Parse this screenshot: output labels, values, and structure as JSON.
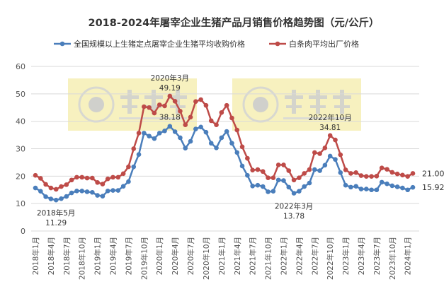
{
  "chart_data": {
    "type": "line",
    "title": "2018-2024年屠宰企业生猪产品月销售价格趋势图（元/公斤）",
    "xlabel": "",
    "ylabel": "",
    "ylim": [
      0,
      60
    ],
    "yticks": [
      0,
      10,
      20,
      30,
      40,
      50,
      60
    ],
    "grid": true,
    "legend_position": "top",
    "x": [
      "2018-01",
      "2018-02",
      "2018-03",
      "2018-04",
      "2018-05",
      "2018-06",
      "2018-07",
      "2018-08",
      "2018-09",
      "2018-10",
      "2018-11",
      "2018-12",
      "2019-01",
      "2019-02",
      "2019-03",
      "2019-04",
      "2019-05",
      "2019-06",
      "2019-07",
      "2019-08",
      "2019-09",
      "2019-10",
      "2019-11",
      "2019-12",
      "2020-01",
      "2020-02",
      "2020-03",
      "2020-04",
      "2020-05",
      "2020-06",
      "2020-07",
      "2020-08",
      "2020-09",
      "2020-10",
      "2020-11",
      "2020-12",
      "2021-01",
      "2021-02",
      "2021-03",
      "2021-04",
      "2021-05",
      "2021-06",
      "2021-07",
      "2021-08",
      "2021-09",
      "2021-10",
      "2021-11",
      "2021-12",
      "2022-01",
      "2022-02",
      "2022-03",
      "2022-04",
      "2022-05",
      "2022-06",
      "2022-07",
      "2022-08",
      "2022-09",
      "2022-10",
      "2022-11",
      "2022-12",
      "2023-01",
      "2023-02",
      "2023-03",
      "2023-04",
      "2023-05",
      "2023-06",
      "2023-07",
      "2023-08",
      "2023-09",
      "2023-10",
      "2023-11",
      "2023-12",
      "2024-01",
      "2024-02"
    ],
    "xtick_labels": [
      "2018年1月",
      "2018年4月",
      "2018年7月",
      "2018年10月",
      "2019年1月",
      "2019年4月",
      "2019年7月",
      "2019年10月",
      "2020年1月",
      "2020年4月",
      "2020年7月",
      "2020年10月",
      "2021年1月",
      "2021年4月",
      "2021年7月",
      "2021年10月",
      "2022年1月",
      "2022年4月",
      "2022年7月",
      "2022年10月",
      "2023年1月",
      "2023年4月",
      "2023年7月",
      "2023年10月",
      "2024年1月"
    ],
    "series": [
      {
        "name": "全国规模以上生猪定点屠宰企业生猪平均收购价格",
        "color": "#4a7ebb",
        "values": [
          15.7,
          14.5,
          12.5,
          11.7,
          11.29,
          11.8,
          12.6,
          13.9,
          14.6,
          14.6,
          14.3,
          14.1,
          13.0,
          12.7,
          14.6,
          14.8,
          14.8,
          16.3,
          18.0,
          23.4,
          27.9,
          35.7,
          34.6,
          33.7,
          35.7,
          36.5,
          38.18,
          36.2,
          34.0,
          30.2,
          32.7,
          37.2,
          37.9,
          36.0,
          32.0,
          30.3,
          34.0,
          36.3,
          32.0,
          28.6,
          23.7,
          20.3,
          16.4,
          16.7,
          16.2,
          14.3,
          14.5,
          18.6,
          18.4,
          16.0,
          13.78,
          14.5,
          16.2,
          17.5,
          22.4,
          22.0,
          24.0,
          27.3,
          26.1,
          21.3,
          16.7,
          16.0,
          16.3,
          15.3,
          15.3,
          15.0,
          15.0,
          17.8,
          17.2,
          16.5,
          16.1,
          15.7,
          15.0,
          15.92
        ]
      },
      {
        "name": "白条肉平均出厂价格",
        "color": "#be4b48",
        "values": [
          20.3,
          19.2,
          17.0,
          15.7,
          15.2,
          16.2,
          16.9,
          18.6,
          19.6,
          19.6,
          19.3,
          19.3,
          17.7,
          17.1,
          19.0,
          19.6,
          19.6,
          20.9,
          23.4,
          30.0,
          35.7,
          45.3,
          45.0,
          43.0,
          46.0,
          45.6,
          49.19,
          47.3,
          43.7,
          38.7,
          41.5,
          47.2,
          47.9,
          45.8,
          40.2,
          38.7,
          43.2,
          45.8,
          41.2,
          36.8,
          30.7,
          26.5,
          22.2,
          22.4,
          21.7,
          19.4,
          19.4,
          24.1,
          24.1,
          22.0,
          18.6,
          19.4,
          21.0,
          22.4,
          28.6,
          28.2,
          30.3,
          34.81,
          33.2,
          27.8,
          22.3,
          21.0,
          21.3,
          20.2,
          19.9,
          19.9,
          20.0,
          23.0,
          22.5,
          21.4,
          20.8,
          20.4,
          19.9,
          21.0
        ]
      }
    ],
    "annotations": [
      {
        "series": 0,
        "x": "2018-05",
        "label": "2018年5月",
        "value_label": "11.29",
        "pos": "below"
      },
      {
        "series": 1,
        "x": "2020-03",
        "label": "2020年3月",
        "value_label": "49.19",
        "pos": "above"
      },
      {
        "series": 0,
        "x": "2020-03",
        "label": "",
        "value_label": "38.18",
        "pos": "above"
      },
      {
        "series": 0,
        "x": "2022-03",
        "label": "2022年3月",
        "value_label": "13.78",
        "pos": "below"
      },
      {
        "series": 1,
        "x": "2022-10",
        "label": "2022年10月",
        "value_label": "34.81",
        "pos": "above"
      },
      {
        "series": 1,
        "x": "2024-02",
        "label": "",
        "value_label": "21.00",
        "pos": "right"
      },
      {
        "series": 0,
        "x": "2024-02",
        "label": "",
        "value_label": "15.92",
        "pos": "right"
      }
    ]
  },
  "watermark": {
    "brand": "大畜牧",
    "url": "www.dxumu.com"
  }
}
